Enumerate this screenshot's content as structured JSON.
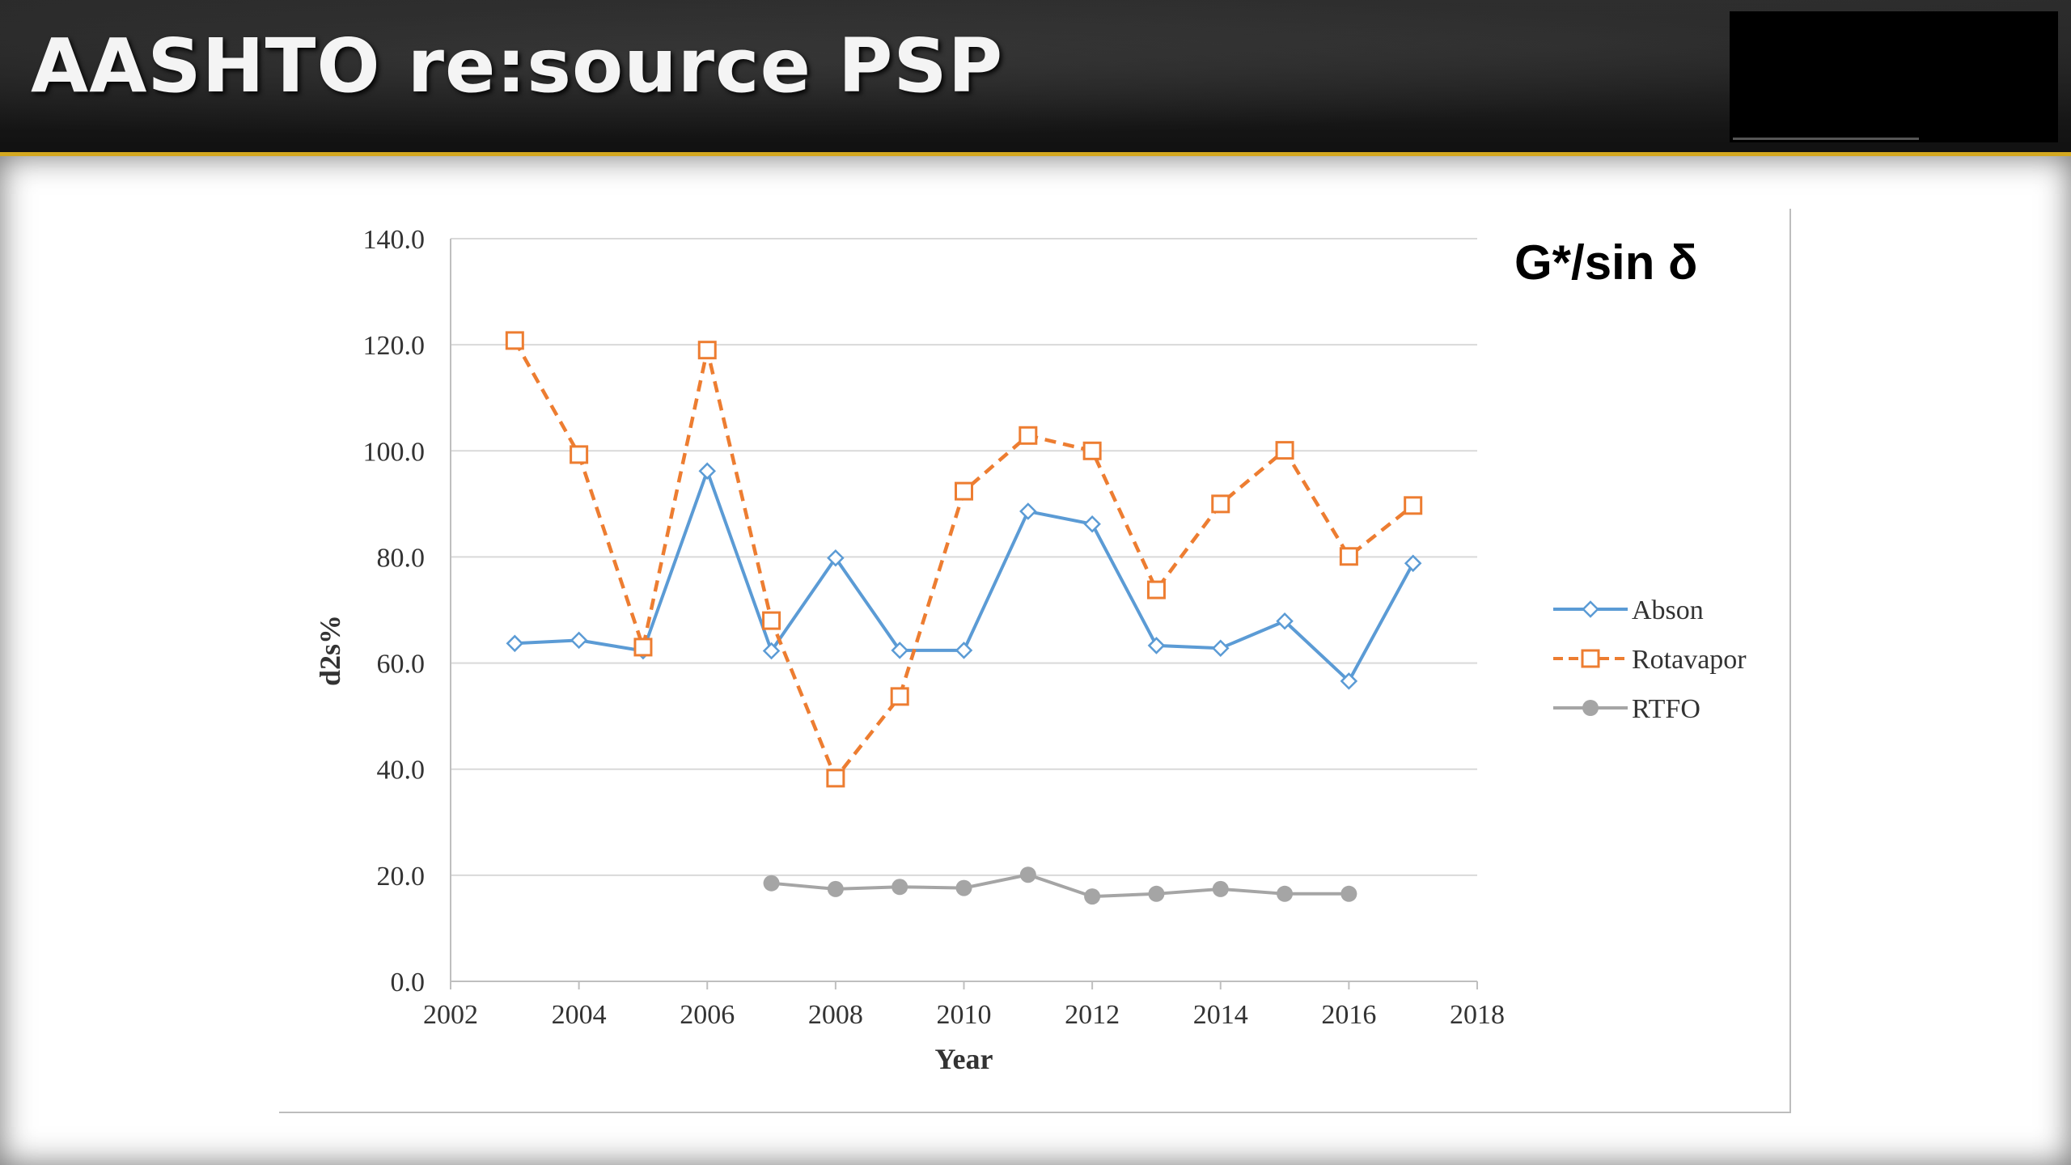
{
  "header": {
    "title": "AASHTO re:source PSP"
  },
  "chart_data": {
    "type": "line",
    "title": "G*/sin δ",
    "xlabel": "Year",
    "ylabel": "d2s%",
    "xlim": [
      2002,
      2018
    ],
    "ylim": [
      0,
      140
    ],
    "x_ticks": [
      "2002",
      "2004",
      "2006",
      "2008",
      "2010",
      "2012",
      "2014",
      "2016",
      "2018"
    ],
    "y_ticks": [
      "0.0",
      "20.0",
      "40.0",
      "60.0",
      "80.0",
      "100.0",
      "120.0",
      "140.0"
    ],
    "grid": "horizontal",
    "legend_position": "right",
    "series": [
      {
        "name": "Abson",
        "color": "#5b9bd5",
        "line_style": "solid",
        "marker": "diamond-open",
        "x": [
          2003,
          2004,
          2005,
          2006,
          2007,
          2008,
          2009,
          2010,
          2011,
          2012,
          2013,
          2014,
          2015,
          2016,
          2017
        ],
        "y": [
          63.7,
          64.3,
          62.3,
          96.2,
          62.3,
          79.8,
          62.4,
          62.4,
          88.6,
          86.2,
          63.3,
          62.8,
          67.9,
          56.6,
          78.8
        ]
      },
      {
        "name": "Rotavapor",
        "color": "#ed7d31",
        "line_style": "dashed",
        "marker": "square-open",
        "x": [
          2003,
          2004,
          2005,
          2006,
          2007,
          2008,
          2009,
          2010,
          2011,
          2012,
          2013,
          2014,
          2015,
          2016,
          2017
        ],
        "y": [
          120.8,
          99.3,
          63.0,
          119.0,
          68.0,
          38.3,
          53.7,
          92.4,
          102.9,
          100.0,
          73.8,
          90.0,
          100.1,
          80.1,
          89.7
        ]
      },
      {
        "name": "RTFO",
        "color": "#a5a5a5",
        "line_style": "solid",
        "marker": "circle-filled",
        "x": [
          2007,
          2008,
          2009,
          2010,
          2011,
          2012,
          2013,
          2014,
          2015,
          2016
        ],
        "y": [
          18.5,
          17.4,
          17.8,
          17.6,
          20.1,
          16.0,
          16.5,
          17.4,
          16.5,
          16.5
        ]
      }
    ]
  }
}
